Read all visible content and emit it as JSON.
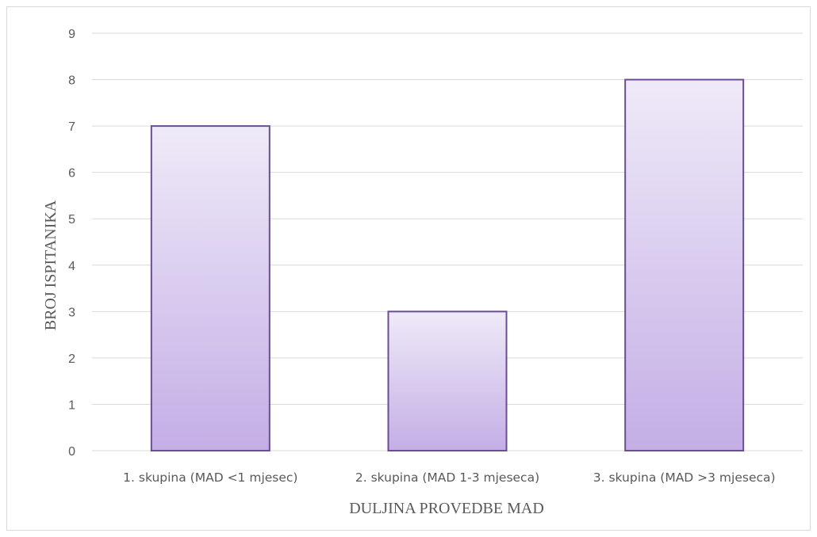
{
  "chart_data": {
    "type": "bar",
    "categories": [
      "1. skupina (MAD <1 mjesec)",
      "2. skupina (MAD 1-3 mjeseca)",
      "3. skupina (MAD  >3 mjeseca)"
    ],
    "values": [
      7,
      3,
      8
    ],
    "title": "",
    "xlabel": "DULJINA PROVEDBE MAD",
    "ylabel": "BROJ ISPITANIKA",
    "ylim": [
      0,
      9
    ],
    "yticks": [
      0,
      1,
      2,
      3,
      4,
      5,
      6,
      7,
      8,
      9
    ],
    "grid": true,
    "legend": "none",
    "colors": {
      "bar_fill_top": "#efeaf8",
      "bar_fill_bottom": "#c4aee6",
      "bar_stroke": "#6a4e94",
      "gridline": "#d9d9d9",
      "text": "#595959"
    }
  }
}
